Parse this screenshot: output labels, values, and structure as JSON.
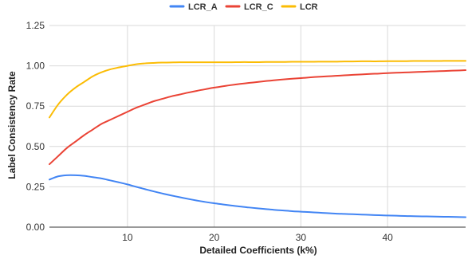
{
  "chart_data": {
    "type": "line",
    "xlabel": "Detailed Coefficients (k%)",
    "ylabel": "Label Consistency Rate",
    "xlim": [
      1,
      49
    ],
    "ylim": [
      0,
      1.25
    ],
    "x_ticks": [
      10,
      20,
      30,
      40
    ],
    "x_tick_labels": [
      "10",
      "20",
      "30",
      "40"
    ],
    "y_ticks": [
      0,
      0.25,
      0.5,
      0.75,
      1.0,
      1.25
    ],
    "y_tick_labels": [
      "0.00",
      "0.25",
      "0.50",
      "0.75",
      "1.00",
      "1.25"
    ],
    "grid": "vertical-and-horizontal",
    "legend": "top-center",
    "x": [
      1,
      2,
      3,
      4,
      5,
      6,
      7,
      8,
      9,
      10,
      11,
      12,
      13,
      14,
      15,
      16,
      17,
      18,
      19,
      20,
      21,
      22,
      23,
      24,
      25,
      26,
      27,
      28,
      29,
      30,
      31,
      32,
      33,
      34,
      35,
      36,
      37,
      38,
      39,
      40,
      41,
      42,
      43,
      44,
      45,
      46,
      47,
      48,
      49
    ],
    "series": [
      {
        "name": "LCR_A",
        "color": "#4285f4",
        "values": [
          0.295,
          0.315,
          0.322,
          0.322,
          0.318,
          0.31,
          0.302,
          0.29,
          0.278,
          0.265,
          0.25,
          0.236,
          0.222,
          0.209,
          0.197,
          0.186,
          0.175,
          0.165,
          0.156,
          0.148,
          0.141,
          0.134,
          0.128,
          0.122,
          0.117,
          0.112,
          0.107,
          0.103,
          0.099,
          0.096,
          0.093,
          0.09,
          0.087,
          0.084,
          0.082,
          0.08,
          0.078,
          0.076,
          0.074,
          0.072,
          0.071,
          0.069,
          0.068,
          0.067,
          0.066,
          0.065,
          0.064,
          0.063,
          0.062
        ]
      },
      {
        "name": "LCR_C",
        "color": "#ea4335",
        "values": [
          0.39,
          0.44,
          0.49,
          0.53,
          0.57,
          0.605,
          0.64,
          0.665,
          0.69,
          0.715,
          0.74,
          0.76,
          0.78,
          0.795,
          0.81,
          0.822,
          0.834,
          0.845,
          0.855,
          0.865,
          0.873,
          0.881,
          0.888,
          0.894,
          0.9,
          0.906,
          0.911,
          0.916,
          0.92,
          0.924,
          0.928,
          0.932,
          0.935,
          0.938,
          0.941,
          0.944,
          0.947,
          0.95,
          0.952,
          0.955,
          0.957,
          0.959,
          0.961,
          0.963,
          0.965,
          0.967,
          0.969,
          0.971,
          0.973
        ]
      },
      {
        "name": "LCR",
        "color": "#fbbc04",
        "values": [
          0.68,
          0.76,
          0.82,
          0.865,
          0.9,
          0.935,
          0.96,
          0.978,
          0.99,
          1.0,
          1.01,
          1.015,
          1.018,
          1.02,
          1.021,
          1.022,
          1.022,
          1.022,
          1.022,
          1.022,
          1.022,
          1.022,
          1.023,
          1.023,
          1.023,
          1.024,
          1.024,
          1.024,
          1.025,
          1.025,
          1.025,
          1.026,
          1.026,
          1.026,
          1.027,
          1.027,
          1.028,
          1.028,
          1.028,
          1.029,
          1.029,
          1.029,
          1.03,
          1.03,
          1.03,
          1.03,
          1.031,
          1.031,
          1.031
        ]
      }
    ]
  }
}
